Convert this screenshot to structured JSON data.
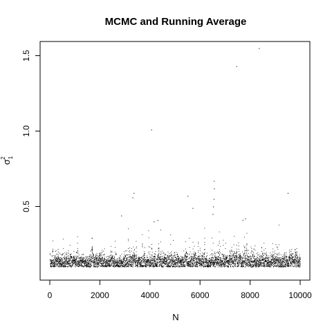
{
  "chart_data": {
    "type": "scatter",
    "title": "MCMC and Running Average",
    "xlabel": "N",
    "ylabel": {
      "symbol": "σ",
      "superscript": "2",
      "subscript": "1"
    },
    "xlim": [
      0,
      10000
    ],
    "ylim": [
      0.09,
      1.6
    ],
    "x_ticks": [
      "0",
      "2000",
      "4000",
      "6000",
      "8000",
      "10000"
    ],
    "y_ticks": [
      "0.5",
      "1.0",
      "1.5"
    ],
    "grid": false,
    "legend": "none",
    "bulk": {
      "n": 10000,
      "center": 0.13,
      "spread": 0.025,
      "min": 0.1
    },
    "outliers": [
      {
        "x": 8350,
        "y": 1.55
      },
      {
        "x": 7450,
        "y": 1.43
      },
      {
        "x": 4050,
        "y": 1.01
      },
      {
        "x": 6550,
        "y": 0.67
      },
      {
        "x": 6560,
        "y": 0.62
      },
      {
        "x": 3350,
        "y": 0.59
      },
      {
        "x": 9500,
        "y": 0.59
      },
      {
        "x": 5500,
        "y": 0.57
      },
      {
        "x": 3300,
        "y": 0.56
      },
      {
        "x": 5700,
        "y": 0.49
      },
      {
        "x": 2850,
        "y": 0.44
      },
      {
        "x": 4300,
        "y": 0.41
      },
      {
        "x": 4150,
        "y": 0.4
      },
      {
        "x": 7800,
        "y": 0.42
      },
      {
        "x": 7700,
        "y": 0.41
      },
      {
        "x": 6500,
        "y": 0.45
      },
      {
        "x": 6520,
        "y": 0.5
      },
      {
        "x": 6540,
        "y": 0.55
      }
    ]
  }
}
